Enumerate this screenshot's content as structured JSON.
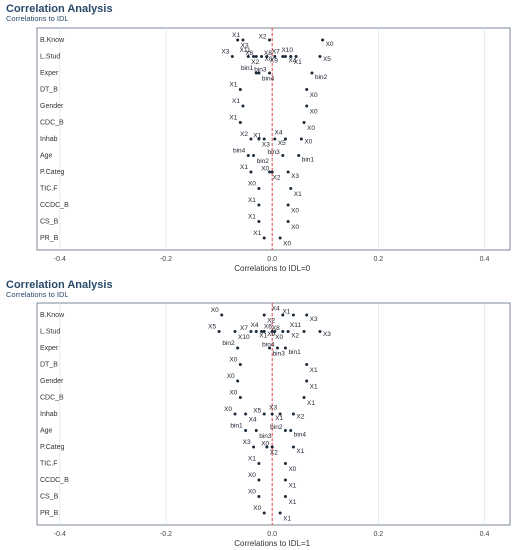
{
  "chart_data": [
    {
      "type": "scatter",
      "title": "Correlation Analysis",
      "subtitle": "Correlations to IDL",
      "xlabel": "Correlations to IDL=0",
      "categories": [
        "B.Know",
        "L.Stud",
        "Exper",
        "DT_B",
        "Gender",
        "CDC_B",
        "Inhab",
        "Age",
        "P.Categ",
        "TIC.F",
        "CCDC_B",
        "CS_B",
        "PR_B"
      ],
      "xlim": [
        -0.443,
        0.448
      ],
      "xticks": [
        -0.4,
        -0.2,
        {
          "value": 0,
          "label": "0.0"
        },
        0.2,
        0.4
      ],
      "grid": true,
      "refline": 0,
      "color": "#1a2a3a",
      "refcolor": "#e03030",
      "points": [
        {
          "category": "B.Know",
          "x": -0.055,
          "label": "X1"
        },
        {
          "category": "B.Know",
          "x": -0.065,
          "label": "X3"
        },
        {
          "category": "B.Know",
          "x": -0.005,
          "label": "X2"
        },
        {
          "category": "B.Know",
          "x": 0.095,
          "label": "X0"
        },
        {
          "category": "L.Stud",
          "x": -0.075,
          "label": "X3"
        },
        {
          "category": "L.Stud",
          "x": -0.045,
          "label": "X2"
        },
        {
          "category": "L.Stud",
          "x": -0.03,
          "label": "X6"
        },
        {
          "category": "L.Stud",
          "x": -0.01,
          "label": "X9"
        },
        {
          "category": "L.Stud",
          "x": -0.035,
          "label": "X11"
        },
        {
          "category": "L.Stud",
          "x": -0.02,
          "label": "X0"
        },
        {
          "category": "L.Stud",
          "x": 0.02,
          "label": "X7"
        },
        {
          "category": "L.Stud",
          "x": 0.035,
          "label": "X1"
        },
        {
          "category": "L.Stud",
          "x": 0.005,
          "label": "X8"
        },
        {
          "category": "L.Stud",
          "x": 0.025,
          "label": "X4"
        },
        {
          "category": "L.Stud",
          "x": 0.045,
          "label": "X10"
        },
        {
          "category": "L.Stud",
          "x": 0.09,
          "label": "X5"
        },
        {
          "category": "Exper",
          "x": -0.03,
          "label": "bin1"
        },
        {
          "category": "Exper",
          "x": -0.025,
          "label": "bin4"
        },
        {
          "category": "Exper",
          "x": -0.005,
          "label": "bin3"
        },
        {
          "category": "Exper",
          "x": 0.075,
          "label": "bin2"
        },
        {
          "category": "DT_B",
          "x": -0.06,
          "label": "X1"
        },
        {
          "category": "DT_B",
          "x": 0.065,
          "label": "X0"
        },
        {
          "category": "Gender",
          "x": -0.055,
          "label": "X1"
        },
        {
          "category": "Gender",
          "x": 0.065,
          "label": "X0"
        },
        {
          "category": "CDC_B",
          "x": -0.06,
          "label": "X1"
        },
        {
          "category": "CDC_B",
          "x": 0.06,
          "label": "X0"
        },
        {
          "category": "Inhab",
          "x": -0.04,
          "label": "X2"
        },
        {
          "category": "Inhab",
          "x": -0.025,
          "label": "X3"
        },
        {
          "category": "Inhab",
          "x": -0.015,
          "label": "X1"
        },
        {
          "category": "Inhab",
          "x": 0.005,
          "label": "X5"
        },
        {
          "category": "Inhab",
          "x": 0.025,
          "label": "X4"
        },
        {
          "category": "Inhab",
          "x": 0.055,
          "label": "X0"
        },
        {
          "category": "Age",
          "x": -0.045,
          "label": "bin4"
        },
        {
          "category": "Age",
          "x": -0.035,
          "label": "bin2"
        },
        {
          "category": "Age",
          "x": 0.02,
          "label": "bin3"
        },
        {
          "category": "Age",
          "x": 0.05,
          "label": "bin1"
        },
        {
          "category": "P.Categ",
          "x": -0.04,
          "label": "X1"
        },
        {
          "category": "P.Categ",
          "x": -0.005,
          "label": "X2"
        },
        {
          "category": "P.Categ",
          "x": 0.0,
          "label": "X0"
        },
        {
          "category": "P.Categ",
          "x": 0.03,
          "label": "X3"
        },
        {
          "category": "TIC.F",
          "x": -0.025,
          "label": "X0"
        },
        {
          "category": "TIC.F",
          "x": 0.035,
          "label": "X1"
        },
        {
          "category": "CCDC_B",
          "x": -0.025,
          "label": "X1"
        },
        {
          "category": "CCDC_B",
          "x": 0.03,
          "label": "X0"
        },
        {
          "category": "CS_B",
          "x": -0.025,
          "label": "X1"
        },
        {
          "category": "CS_B",
          "x": 0.03,
          "label": "X0"
        },
        {
          "category": "PR_B",
          "x": -0.015,
          "label": "X1"
        },
        {
          "category": "PR_B",
          "x": 0.015,
          "label": "X0"
        }
      ]
    },
    {
      "type": "scatter",
      "title": "Correlation Analysis",
      "subtitle": "Correlations to IDL",
      "xlabel": "Correlations to IDL=1",
      "categories": [
        "B.Know",
        "L.Stud",
        "Exper",
        "DT_B",
        "Gender",
        "CDC_B",
        "Inhab",
        "Age",
        "P.Categ",
        "TIC.F",
        "CCDC_B",
        "CS_B",
        "PR_B"
      ],
      "xlim": [
        -0.443,
        0.448
      ],
      "xticks": [
        -0.4,
        -0.2,
        {
          "value": 0,
          "label": "0.0"
        },
        0.2,
        0.4
      ],
      "grid": true,
      "refline": 0,
      "color": "#1a2a3a",
      "refcolor": "#e03030",
      "points": [
        {
          "category": "B.Know",
          "x": -0.095,
          "label": "X0"
        },
        {
          "category": "B.Know",
          "x": -0.015,
          "label": "X2"
        },
        {
          "category": "B.Know",
          "x": 0.04,
          "label": "X1"
        },
        {
          "category": "B.Know",
          "x": 0.065,
          "label": "X3"
        },
        {
          "category": "B.Know",
          "x": 0.02,
          "label": "X4"
        },
        {
          "category": "L.Stud",
          "x": -0.1,
          "label": "X5"
        },
        {
          "category": "L.Stud",
          "x": -0.07,
          "label": "X10"
        },
        {
          "category": "L.Stud",
          "x": -0.04,
          "label": "X7"
        },
        {
          "category": "L.Stud",
          "x": -0.03,
          "label": "X1"
        },
        {
          "category": "L.Stud",
          "x": -0.02,
          "label": "X4"
        },
        {
          "category": "L.Stud",
          "x": -0.015,
          "label": "X9"
        },
        {
          "category": "L.Stud",
          "x": 0.005,
          "label": "X6"
        },
        {
          "category": "L.Stud",
          "x": 0.0,
          "label": "X0"
        },
        {
          "category": "L.Stud",
          "x": 0.02,
          "label": "X8"
        },
        {
          "category": "L.Stud",
          "x": 0.03,
          "label": "X2"
        },
        {
          "category": "L.Stud",
          "x": 0.06,
          "label": "X11"
        },
        {
          "category": "L.Stud",
          "x": 0.09,
          "label": "X3"
        },
        {
          "category": "Exper",
          "x": -0.065,
          "label": "bin2"
        },
        {
          "category": "Exper",
          "x": -0.005,
          "label": "bin3"
        },
        {
          "category": "Exper",
          "x": 0.01,
          "label": "bin4"
        },
        {
          "category": "Exper",
          "x": 0.025,
          "label": "bin1"
        },
        {
          "category": "DT_B",
          "x": -0.06,
          "label": "X0"
        },
        {
          "category": "DT_B",
          "x": 0.065,
          "label": "X1"
        },
        {
          "category": "Gender",
          "x": -0.065,
          "label": "X0"
        },
        {
          "category": "Gender",
          "x": 0.065,
          "label": "X1"
        },
        {
          "category": "CDC_B",
          "x": -0.06,
          "label": "X0"
        },
        {
          "category": "CDC_B",
          "x": 0.06,
          "label": "X1"
        },
        {
          "category": "Inhab",
          "x": -0.07,
          "label": "X0"
        },
        {
          "category": "Inhab",
          "x": -0.05,
          "label": "X4"
        },
        {
          "category": "Inhab",
          "x": -0.015,
          "label": "X5"
        },
        {
          "category": "Inhab",
          "x": 0.0,
          "label": "X1"
        },
        {
          "category": "Inhab",
          "x": 0.015,
          "label": "X3"
        },
        {
          "category": "Inhab",
          "x": 0.04,
          "label": "X2"
        },
        {
          "category": "Age",
          "x": -0.05,
          "label": "bin1"
        },
        {
          "category": "Age",
          "x": -0.03,
          "label": "bin3"
        },
        {
          "category": "Age",
          "x": 0.025,
          "label": "bin2"
        },
        {
          "category": "Age",
          "x": 0.035,
          "label": "bin4"
        },
        {
          "category": "P.Categ",
          "x": -0.035,
          "label": "X3"
        },
        {
          "category": "P.Categ",
          "x": -0.01,
          "label": "X2"
        },
        {
          "category": "P.Categ",
          "x": 0.0,
          "label": "X0"
        },
        {
          "category": "P.Categ",
          "x": 0.04,
          "label": "X1"
        },
        {
          "category": "TIC.F",
          "x": -0.025,
          "label": "X1"
        },
        {
          "category": "TIC.F",
          "x": 0.025,
          "label": "X0"
        },
        {
          "category": "CCDC_B",
          "x": -0.025,
          "label": "X0"
        },
        {
          "category": "CCDC_B",
          "x": 0.025,
          "label": "X1"
        },
        {
          "category": "CS_B",
          "x": -0.025,
          "label": "X0"
        },
        {
          "category": "CS_B",
          "x": 0.025,
          "label": "X1"
        },
        {
          "category": "PR_B",
          "x": -0.015,
          "label": "X0"
        },
        {
          "category": "PR_B",
          "x": 0.015,
          "label": "X1"
        }
      ]
    }
  ]
}
